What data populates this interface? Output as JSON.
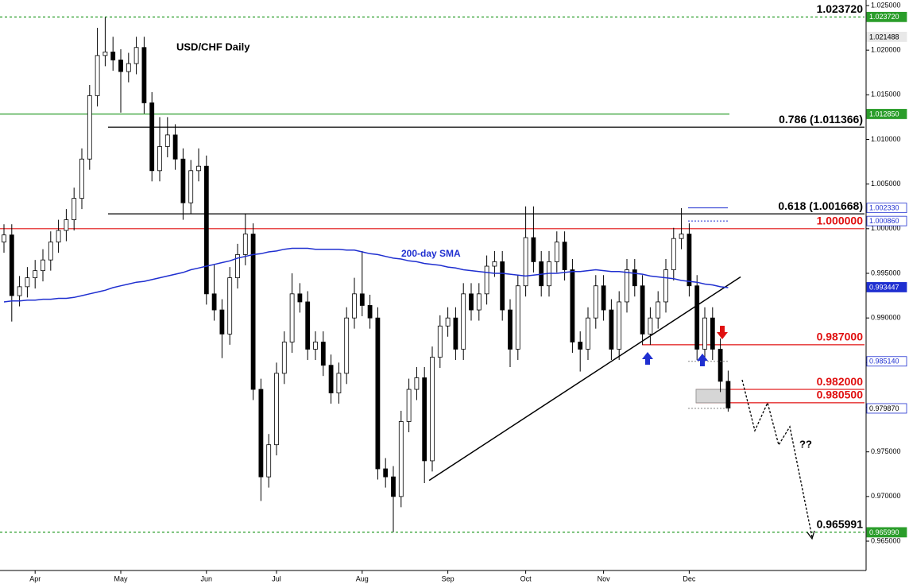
{
  "chart_data": {
    "type": "candlestick",
    "title": "USD/CHF Daily",
    "categories": [
      null,
      null,
      null,
      null,
      "Apr",
      null,
      null,
      null,
      null,
      null,
      null,
      null,
      null,
      null,
      null,
      "May",
      null,
      null,
      null,
      null,
      null,
      null,
      null,
      null,
      null,
      null,
      "Jun",
      null,
      null,
      null,
      null,
      null,
      null,
      null,
      null,
      "Jul",
      null,
      null,
      null,
      null,
      null,
      null,
      null,
      null,
      null,
      null,
      "Aug",
      null,
      null,
      null,
      null,
      null,
      null,
      null,
      null,
      null,
      null,
      "Sep",
      null,
      null,
      null,
      null,
      null,
      null,
      null,
      null,
      null,
      "Oct",
      null,
      null,
      null,
      null,
      null,
      null,
      null,
      null,
      null,
      "Nov",
      null,
      null,
      null,
      null,
      null,
      null,
      null,
      null,
      null,
      null,
      "Dec",
      null,
      null,
      null,
      null,
      null
    ],
    "ohlc": [
      [
        0.9985,
        1.0005,
        0.9973,
        0.9993
      ],
      [
        0.9993,
        1.0005,
        0.9896,
        0.9925
      ],
      [
        0.9925,
        0.9947,
        0.9913,
        0.9935
      ],
      [
        0.9935,
        0.9957,
        0.9923,
        0.9945
      ],
      [
        0.9945,
        0.9965,
        0.9933,
        0.9953
      ],
      [
        0.9953,
        0.9977,
        0.9941,
        0.9965
      ],
      [
        0.9965,
        0.9997,
        0.9953,
        0.9985
      ],
      [
        0.9985,
        1.001,
        0.9973,
        0.9998
      ],
      [
        0.9998,
        1.0022,
        0.9986,
        1.001
      ],
      [
        1.001,
        1.0046,
        0.9998,
        1.0034
      ],
      [
        1.0034,
        1.009,
        1.0022,
        1.0078
      ],
      [
        1.0078,
        1.0161,
        1.0066,
        1.0149
      ],
      [
        1.0149,
        1.0225,
        1.0137,
        1.0194
      ],
      [
        1.0194,
        1.0237,
        1.0182,
        1.0198
      ],
      [
        1.0198,
        1.0215,
        1.0177,
        1.0189
      ],
      [
        1.0189,
        1.0201,
        1.013,
        1.0176
      ],
      [
        1.0176,
        1.0197,
        1.0164,
        1.0185
      ],
      [
        1.0185,
        1.0215,
        1.0173,
        1.0203
      ],
      [
        1.0203,
        1.0215,
        1.0129,
        1.0141
      ],
      [
        1.0141,
        1.0153,
        1.0053,
        1.0065
      ],
      [
        1.0065,
        1.0125,
        1.0053,
        1.0092
      ],
      [
        1.0092,
        1.0125,
        1.008,
        1.0105
      ],
      [
        1.0105,
        1.0117,
        1.0066,
        1.0078
      ],
      [
        1.0078,
        1.009,
        1.001,
        1.0029
      ],
      [
        1.0029,
        1.0077,
        1.0017,
        1.0065
      ],
      [
        1.0065,
        1.009,
        1.0053,
        1.007
      ],
      [
        1.007,
        1.0082,
        0.9915,
        0.9927
      ],
      [
        0.9927,
        0.996,
        0.9897,
        0.9909
      ],
      [
        0.9909,
        0.9921,
        0.9855,
        0.9882
      ],
      [
        0.9882,
        0.9957,
        0.987,
        0.9945
      ],
      [
        0.9945,
        0.9983,
        0.9933,
        0.9971
      ],
      [
        0.9971,
        1.0017,
        0.9959,
        0.9994
      ],
      [
        0.9994,
        1.0006,
        0.9808,
        0.982
      ],
      [
        0.982,
        0.9832,
        0.9695,
        0.9722
      ],
      [
        0.9722,
        0.977,
        0.971,
        0.9758
      ],
      [
        0.9758,
        0.985,
        0.9746,
        0.9838
      ],
      [
        0.9838,
        0.9885,
        0.9826,
        0.9873
      ],
      [
        0.9873,
        0.995,
        0.9861,
        0.9927
      ],
      [
        0.9927,
        0.9939,
        0.9906,
        0.9918
      ],
      [
        0.9918,
        0.993,
        0.9853,
        0.9865
      ],
      [
        0.9865,
        0.9885,
        0.9853,
        0.9873
      ],
      [
        0.9873,
        0.9885,
        0.9835,
        0.9847
      ],
      [
        0.9847,
        0.9859,
        0.9804,
        0.9816
      ],
      [
        0.9816,
        0.985,
        0.9804,
        0.9838
      ],
      [
        0.9838,
        0.9912,
        0.9826,
        0.99
      ],
      [
        0.99,
        0.9945,
        0.9888,
        0.9927
      ],
      [
        0.9927,
        0.9975,
        0.9902,
        0.9914
      ],
      [
        0.9914,
        0.9926,
        0.9888,
        0.99
      ],
      [
        0.99,
        0.9912,
        0.9719,
        0.9731
      ],
      [
        0.9731,
        0.9743,
        0.971,
        0.9722
      ],
      [
        0.9722,
        0.9734,
        0.966,
        0.97
      ],
      [
        0.97,
        0.9796,
        0.9688,
        0.9784
      ],
      [
        0.9784,
        0.9832,
        0.9772,
        0.982
      ],
      [
        0.982,
        0.9845,
        0.9808,
        0.9833
      ],
      [
        0.9833,
        0.9845,
        0.9715,
        0.974
      ],
      [
        0.974,
        0.9868,
        0.9728,
        0.9856
      ],
      [
        0.9856,
        0.9903,
        0.9844,
        0.9891
      ],
      [
        0.9891,
        0.9912,
        0.9879,
        0.99
      ],
      [
        0.99,
        0.9912,
        0.9853,
        0.9865
      ],
      [
        0.9865,
        0.9939,
        0.9853,
        0.9927
      ],
      [
        0.9927,
        0.9939,
        0.9897,
        0.9909
      ],
      [
        0.9909,
        0.9939,
        0.9897,
        0.9927
      ],
      [
        0.9927,
        0.997,
        0.9915,
        0.9958
      ],
      [
        0.9958,
        0.9975,
        0.9946,
        0.9963
      ],
      [
        0.9963,
        0.9975,
        0.9897,
        0.9909
      ],
      [
        0.9909,
        0.9921,
        0.9845,
        0.9865
      ],
      [
        0.9865,
        0.9948,
        0.9853,
        0.9936
      ],
      [
        0.9936,
        1.0025,
        0.9924,
        0.999
      ],
      [
        0.999,
        1.0025,
        0.9951,
        0.9963
      ],
      [
        0.9963,
        0.9975,
        0.9924,
        0.9936
      ],
      [
        0.9936,
        0.9975,
        0.9924,
        0.9963
      ],
      [
        0.9963,
        0.9997,
        0.9951,
        0.9985
      ],
      [
        0.9985,
        0.9997,
        0.9942,
        0.9954
      ],
      [
        0.9954,
        0.9966,
        0.9861,
        0.9873
      ],
      [
        0.9873,
        0.9885,
        0.984,
        0.9865
      ],
      [
        0.9865,
        0.9912,
        0.9853,
        0.99
      ],
      [
        0.99,
        0.9948,
        0.9888,
        0.9936
      ],
      [
        0.9936,
        0.9948,
        0.9897,
        0.9909
      ],
      [
        0.9909,
        0.9921,
        0.9853,
        0.9865
      ],
      [
        0.9865,
        0.993,
        0.9853,
        0.9918
      ],
      [
        0.9918,
        0.9966,
        0.9906,
        0.9954
      ],
      [
        0.9954,
        0.9966,
        0.9924,
        0.9936
      ],
      [
        0.9936,
        0.9948,
        0.987,
        0.9882
      ],
      [
        0.9882,
        0.9912,
        0.987,
        0.99
      ],
      [
        0.99,
        0.993,
        0.9888,
        0.9918
      ],
      [
        0.9918,
        0.9966,
        0.9906,
        0.9954
      ],
      [
        0.9954,
        1.0001,
        0.9942,
        0.9989
      ],
      [
        0.9989,
        1.0023,
        0.9977,
        0.9994
      ],
      [
        0.9994,
        1.0006,
        0.9924,
        0.9936
      ],
      [
        0.9936,
        0.9948,
        0.9853,
        0.9865
      ],
      [
        0.9865,
        0.9912,
        0.9853,
        0.99
      ],
      [
        0.99,
        0.9912,
        0.9853,
        0.9865
      ],
      [
        0.9865,
        0.9877,
        0.9817,
        0.9829
      ],
      [
        0.9829,
        0.9841,
        0.9795,
        0.9799
      ]
    ],
    "up_color": "#ffffff",
    "down_color": "#000000",
    "sma": {
      "name": "200-day SMA",
      "color": "#1f2fd0",
      "values": [
        0.9918,
        0.9919,
        0.9919,
        0.992,
        0.992,
        0.9921,
        0.9921,
        0.9922,
        0.9922,
        0.9923,
        0.9925,
        0.9927,
        0.9929,
        0.9931,
        0.9934,
        0.9936,
        0.9938,
        0.994,
        0.9941,
        0.9943,
        0.9945,
        0.9947,
        0.9949,
        0.9951,
        0.9954,
        0.9956,
        0.9958,
        0.996,
        0.9962,
        0.9964,
        0.9967,
        0.9969,
        0.9971,
        0.9972,
        0.9974,
        0.9975,
        0.9977,
        0.9978,
        0.9978,
        0.9978,
        0.9977,
        0.9977,
        0.9977,
        0.9977,
        0.9976,
        0.9976,
        0.9974,
        0.9972,
        0.9971,
        0.9969,
        0.9967,
        0.9966,
        0.9964,
        0.9963,
        0.9961,
        0.996,
        0.9959,
        0.9957,
        0.9956,
        0.9954,
        0.9953,
        0.9952,
        0.9951,
        0.995,
        0.995,
        0.9949,
        0.9948,
        0.9947,
        0.9948,
        0.9949,
        0.995,
        0.995,
        0.9951,
        0.9952,
        0.9952,
        0.9953,
        0.9954,
        0.9953,
        0.9952,
        0.9952,
        0.9951,
        0.995,
        0.9949,
        0.9947,
        0.9946,
        0.9945,
        0.9944,
        0.9942,
        0.9941,
        0.994,
        0.9938,
        0.9937,
        0.9935,
        0.9934
      ]
    },
    "trendline": {
      "x": [
        54.6,
        94.6
      ],
      "values": [
        0.9718,
        0.9946
      ]
    },
    "levels": [
      {
        "value": 1.02372,
        "label": "1.023720",
        "color": "#2a9d2a",
        "label_color": "#000000",
        "dashed": true
      },
      {
        "value": 1.01285,
        "color": "#2a9d2a",
        "dashed": false
      },
      {
        "value": 1.011366,
        "label": "0.786 (1.011366)",
        "color": "#000000",
        "label_color": "#000000",
        "dashed": false
      },
      {
        "value": 1.001668,
        "label": "0.618 (1.001668)",
        "color": "#000000",
        "label_color": "#000000",
        "dashed": false
      },
      {
        "value": 1.0,
        "label": "1.000000",
        "color": "#e01010",
        "label_color": "#e01010",
        "dashed": false
      },
      {
        "value": 0.987,
        "label": "0.987000",
        "color": "#e01010",
        "label_color": "#e01010",
        "dashed": false
      },
      {
        "value": 0.982,
        "label": "0.982000",
        "color": "#e01010",
        "label_color": "#e01010",
        "dashed": false
      },
      {
        "value": 0.9805,
        "label": "0.980500",
        "color": "#e01010",
        "label_color": "#e01010",
        "dashed": false
      },
      {
        "value": 0.965991,
        "label": "0.965991",
        "color": "#2a9d2a",
        "label_color": "#000000",
        "dashed": true
      }
    ],
    "price_boxes": [
      {
        "value": 1.02372,
        "label": "1.023720",
        "fill": "#2a9d2a",
        "text_color": "#ffffff"
      },
      {
        "value": 1.021488,
        "label": "1.021488",
        "fill": "#e8e8e8",
        "text_color": "#000000"
      },
      {
        "value": 1.01285,
        "label": "1.012850",
        "fill": "#2a9d2a",
        "text_color": "#ffffff"
      },
      {
        "value": 1.00233,
        "label": "1.002330",
        "fill": "#ffffff",
        "text_color": "#1f2fd0"
      },
      {
        "value": 1.00086,
        "label": "1.000860",
        "fill": "#ffffff",
        "text_color": "#1f2fd0"
      },
      {
        "value": 0.993447,
        "label": "0.993447",
        "fill": "#1f2fd0",
        "text_color": "#ffffff"
      },
      {
        "value": 0.98514,
        "label": "0.985140",
        "fill": "#ffffff",
        "text_color": "#1f2fd0"
      },
      {
        "value": 0.97987,
        "label": "0.979870",
        "fill": "#ffffff",
        "text_color": "#000000"
      },
      {
        "value": 0.96599,
        "label": "0.965990",
        "fill": "#2a9d2a",
        "text_color": "#ffffff"
      }
    ],
    "annotations": [
      "??"
    ],
    "ylim": [
      0.96171,
      1.02562
    ],
    "yticks": [
      {
        "value": 0.965,
        "label": "0.965000"
      },
      {
        "value": 0.97,
        "label": "0.970000"
      },
      {
        "value": 0.975,
        "label": "0.975000"
      },
      {
        "value": 0.98,
        "label": "0.980000"
      },
      {
        "value": 0.985,
        "label": "0.985000"
      },
      {
        "value": 0.99,
        "label": "0.990000"
      },
      {
        "value": 0.995,
        "label": "0.995000"
      },
      {
        "value": 1.0,
        "label": "1.000000"
      },
      {
        "value": 1.005,
        "label": "1.005000"
      },
      {
        "value": 1.01,
        "label": "1.010000"
      },
      {
        "value": 1.015,
        "label": "1.015000"
      },
      {
        "value": 1.02,
        "label": "1.020000"
      },
      {
        "value": 1.025,
        "label": "1.025000"
      }
    ]
  }
}
